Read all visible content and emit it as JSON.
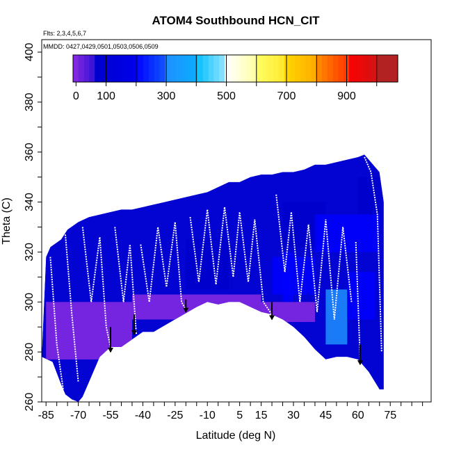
{
  "chart_data": {
    "type": "heatmap",
    "title": "ATOM4 Southbound HCN_CIT",
    "annotations": [
      "Flts: 2,3,4,5,6,7",
      "MMDD: 0427,0429,0501,0503,0506,0509"
    ],
    "xlabel": "Latitude (deg N)",
    "ylabel": "Theta (C)",
    "xlim": [
      -87,
      94
    ],
    "ylim": [
      260,
      405
    ],
    "x_ticks": [
      -85,
      -70,
      -55,
      -40,
      -25,
      -10,
      5,
      15,
      30,
      45,
      60,
      75
    ],
    "y_ticks": [
      260,
      280,
      300,
      320,
      340,
      360,
      380,
      400
    ],
    "colorbar": {
      "range": [
        -10,
        1070
      ],
      "tick_values": [
        0,
        100,
        300,
        500,
        700,
        900
      ],
      "colors": [
        "#8a2be2",
        "#0000cd",
        "#0000ff",
        "#1e90ff",
        "#00bfff",
        "#ffffff",
        "#ffff66",
        "#ffd700",
        "#ff8c00",
        "#ff0000",
        "#b22222"
      ],
      "bounds": [
        -10,
        60,
        200,
        300,
        400,
        500,
        600,
        700,
        800,
        900,
        1000,
        1070
      ]
    },
    "envelope_top": [
      [
        -87,
        278
      ],
      [
        -85,
        318
      ],
      [
        -83,
        322
      ],
      [
        -78,
        325
      ],
      [
        -75,
        329
      ],
      [
        -70,
        332
      ],
      [
        -65,
        334
      ],
      [
        -60,
        335
      ],
      [
        -55,
        336
      ],
      [
        -50,
        337
      ],
      [
        -45,
        337
      ],
      [
        -40,
        338
      ],
      [
        -35,
        339
      ],
      [
        -30,
        340
      ],
      [
        -25,
        341
      ],
      [
        -20,
        342
      ],
      [
        -15,
        343
      ],
      [
        -10,
        344
      ],
      [
        -5,
        346
      ],
      [
        0,
        348
      ],
      [
        5,
        348
      ],
      [
        10,
        350
      ],
      [
        15,
        351
      ],
      [
        20,
        351
      ],
      [
        25,
        352
      ],
      [
        30,
        352
      ],
      [
        35,
        353
      ],
      [
        40,
        355
      ],
      [
        45,
        355
      ],
      [
        50,
        356
      ],
      [
        55,
        357
      ],
      [
        60,
        358
      ],
      [
        63,
        359
      ],
      [
        70,
        352
      ],
      [
        72,
        340
      ]
    ],
    "envelope_bottom": [
      [
        -87,
        278
      ],
      [
        -82,
        276
      ],
      [
        -78,
        267
      ],
      [
        -76,
        263
      ],
      [
        -73,
        261
      ],
      [
        -70,
        260
      ],
      [
        -68,
        262
      ],
      [
        -65,
        268
      ],
      [
        -60,
        278
      ],
      [
        -55,
        282
      ],
      [
        -50,
        282
      ],
      [
        -45,
        285
      ],
      [
        -40,
        288
      ],
      [
        -35,
        288
      ],
      [
        -25,
        293
      ],
      [
        -15,
        298
      ],
      [
        -10,
        300
      ],
      [
        -5,
        299
      ],
      [
        0,
        300
      ],
      [
        5,
        300
      ],
      [
        10,
        298
      ],
      [
        15,
        296
      ],
      [
        20,
        295
      ],
      [
        25,
        293
      ],
      [
        30,
        290
      ],
      [
        35,
        286
      ],
      [
        40,
        281
      ],
      [
        45,
        277
      ],
      [
        50,
        278
      ],
      [
        55,
        278
      ],
      [
        60,
        277
      ],
      [
        65,
        272
      ],
      [
        70,
        265
      ],
      [
        72,
        265
      ]
    ],
    "background_value": 80,
    "regions": [
      {
        "x": [
          -85,
          -45
        ],
        "y": [
          277,
          300
        ],
        "value": 15
      },
      {
        "x": [
          -45,
          15
        ],
        "y": [
          293,
          303
        ],
        "value": 30
      },
      {
        "x": [
          15,
          40
        ],
        "y": [
          292,
          300
        ],
        "value": 45
      },
      {
        "x": [
          25,
          45
        ],
        "y": [
          322,
          340
        ],
        "value": 190
      },
      {
        "x": [
          25,
          30
        ],
        "y": [
          300,
          320
        ],
        "value": 230
      },
      {
        "x": [
          40,
          70
        ],
        "y": [
          320,
          335
        ],
        "value": 240
      },
      {
        "x": [
          45,
          55
        ],
        "y": [
          283,
          305
        ],
        "value": 300
      },
      {
        "x": [
          55,
          68
        ],
        "y": [
          293,
          312
        ],
        "value": 210
      },
      {
        "x": [
          20,
          40
        ],
        "y": [
          303,
          318
        ],
        "value": 210
      },
      {
        "x": [
          60,
          70
        ],
        "y": [
          335,
          350
        ],
        "value": 150
      },
      {
        "x": [
          -20,
          0
        ],
        "y": [
          305,
          325
        ],
        "value": 120
      }
    ],
    "flight_tracks": [
      [
        [
          -83,
          318
        ],
        [
          -80,
          283
        ],
        [
          -77,
          265
        ]
      ],
      [
        [
          -76,
          327
        ],
        [
          -73,
          295
        ],
        [
          -70,
          268
        ]
      ],
      [
        [
          -68,
          330
        ],
        [
          -64,
          300
        ],
        [
          -60,
          326
        ],
        [
          -57,
          290
        ],
        [
          -55,
          282
        ]
      ],
      [
        [
          -53,
          330
        ],
        [
          -49,
          300
        ],
        [
          -46,
          323
        ],
        [
          -43,
          287
        ]
      ],
      [
        [
          -41,
          323
        ],
        [
          -37,
          300
        ],
        [
          -33,
          330
        ],
        [
          -29,
          306
        ],
        [
          -25,
          332
        ],
        [
          -22,
          300
        ],
        [
          -20,
          297
        ]
      ],
      [
        [
          -18,
          334
        ],
        [
          -14,
          308
        ],
        [
          -10,
          337
        ],
        [
          -6,
          307
        ],
        [
          -2,
          338
        ],
        [
          2,
          310
        ],
        [
          5,
          336
        ],
        [
          9,
          308
        ],
        [
          12,
          333
        ],
        [
          16,
          300
        ],
        [
          20,
          295
        ]
      ],
      [
        [
          22,
          343
        ],
        [
          26,
          312
        ],
        [
          29,
          336
        ],
        [
          33,
          300
        ],
        [
          37,
          331
        ],
        [
          41,
          296
        ],
        [
          45,
          333
        ],
        [
          49,
          293
        ],
        [
          53,
          330
        ],
        [
          57,
          300
        ]
      ],
      [
        [
          59,
          324
        ],
        [
          61,
          277
        ]
      ],
      [
        [
          63,
          358
        ],
        [
          66,
          352
        ],
        [
          69,
          335
        ],
        [
          71,
          280
        ]
      ]
    ],
    "arrows": [
      {
        "x": -55,
        "y_from": 290,
        "y_to": 280
      },
      {
        "x": -44,
        "y_from": 295,
        "y_to": 287
      },
      {
        "x": -20,
        "y_from": 301,
        "y_to": 296
      },
      {
        "x": 20,
        "y_from": 300,
        "y_to": 293
      },
      {
        "x": 61,
        "y_from": 283,
        "y_to": 275
      }
    ]
  }
}
